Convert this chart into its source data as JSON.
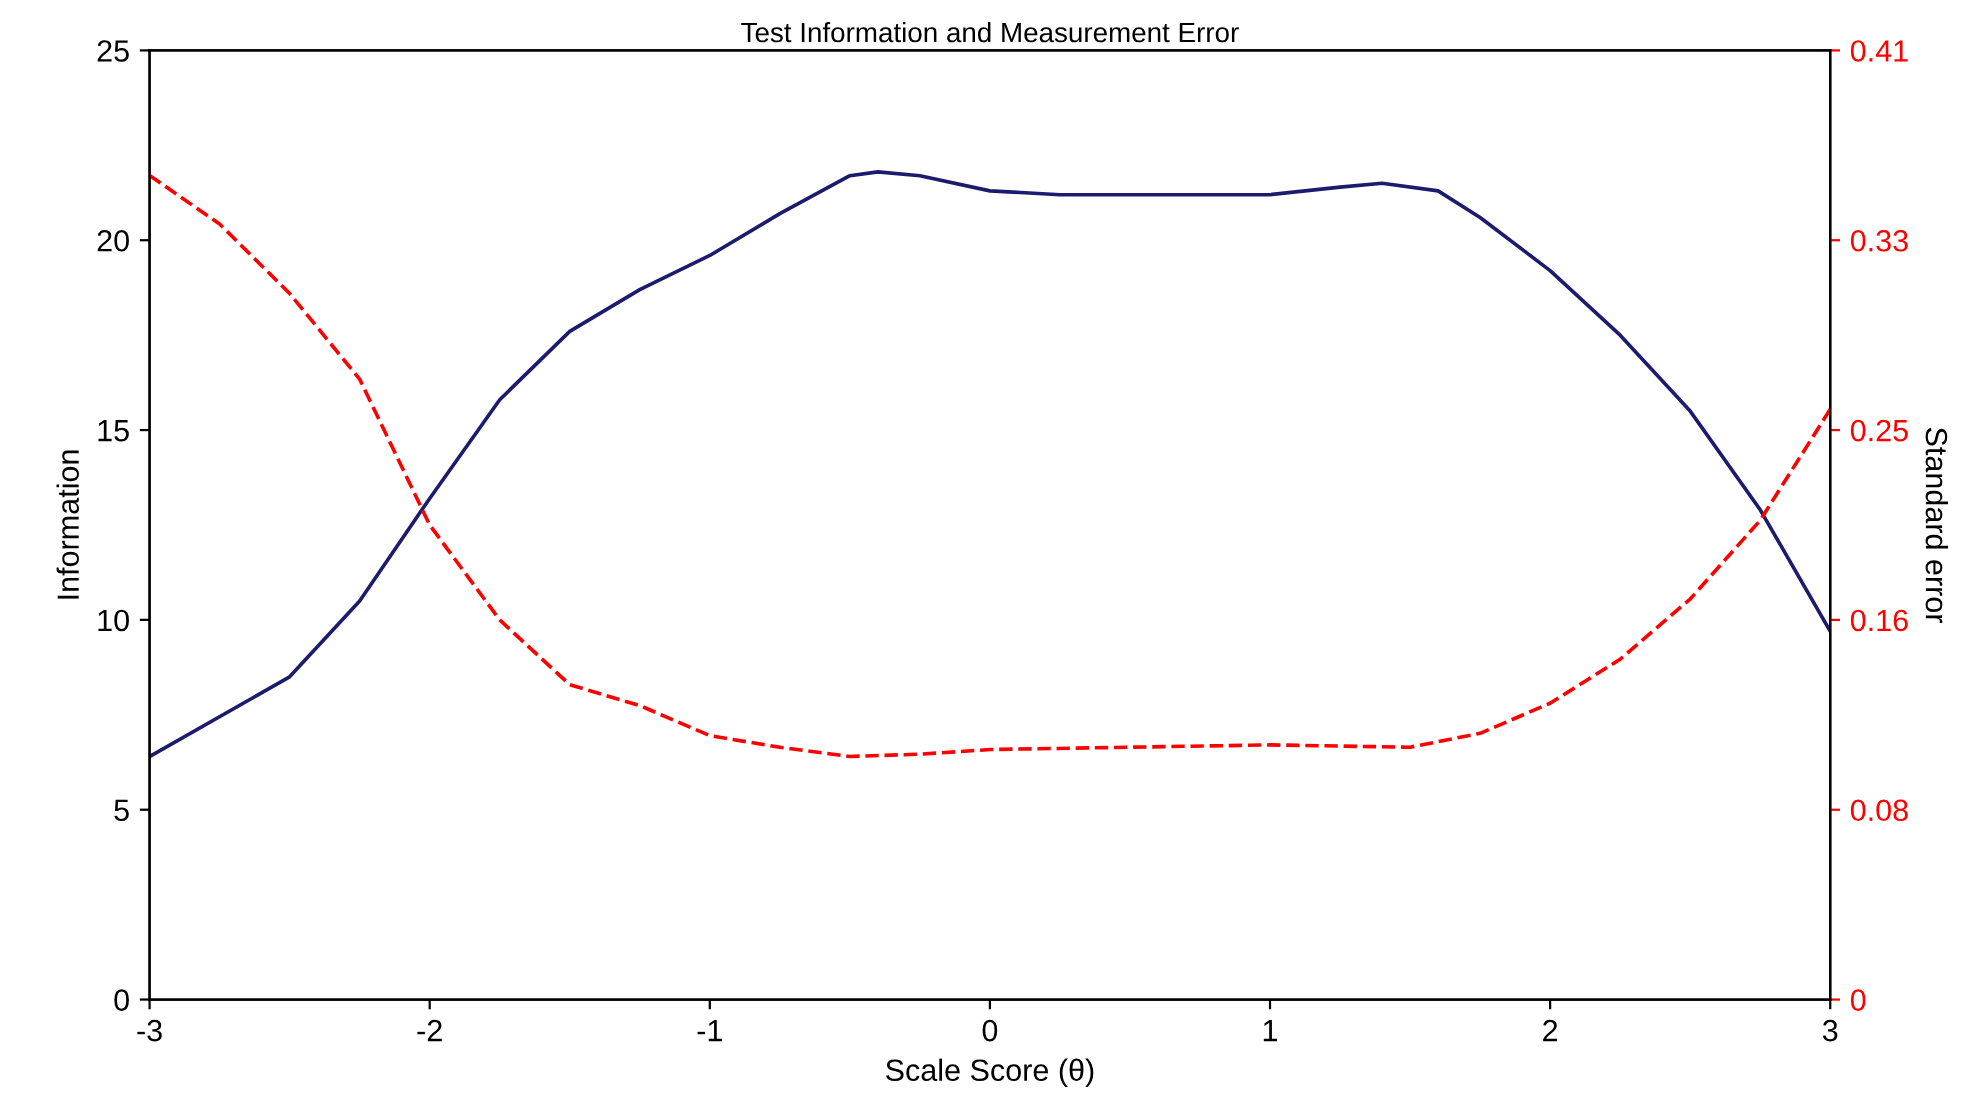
{
  "chart_data": {
    "type": "line",
    "title": "Test Information and Measurement Error",
    "xlabel": "Scale Score (θ)",
    "ylabel": "Information",
    "y2label": "Standard error",
    "xlim": [
      -3,
      3
    ],
    "xticks": [
      -3,
      -2,
      -1,
      0,
      1,
      2,
      3
    ],
    "ylim": [
      0,
      25
    ],
    "yticks": [
      0,
      5,
      10,
      15,
      20,
      25
    ],
    "y2lim": [
      0,
      0.41
    ],
    "y2ticks": [
      0,
      {
        "value": 0.082,
        "label": "0.08"
      },
      {
        "value": 0.164,
        "label": "0.16"
      },
      {
        "value": 0.246,
        "label": "0.25"
      },
      {
        "value": 0.328,
        "label": "0.33"
      },
      0.41
    ],
    "grid": false,
    "legend": false,
    "marker": "none",
    "series": [
      {
        "color": "#1c1c6e",
        "line_style": "solid",
        "x": [
          -3,
          -2.5,
          -2.25,
          -2,
          -1.75,
          -1.5,
          -1.25,
          -1,
          -0.75,
          -0.5,
          -0.4,
          -0.25,
          0,
          0.25,
          0.5,
          0.75,
          1,
          1.25,
          1.4,
          1.6,
          1.75,
          2,
          2.25,
          2.5,
          2.75,
          3
        ],
        "values": [
          6.4,
          8.5,
          10.5,
          13.2,
          15.8,
          17.6,
          18.7,
          19.6,
          20.7,
          21.7,
          21.8,
          21.7,
          21.3,
          21.2,
          21.2,
          21.2,
          21.2,
          21.4,
          21.5,
          21.3,
          20.6,
          19.2,
          17.5,
          15.5,
          12.9,
          9.7
        ]
      },
      {
        "color": "#ff0000",
        "line_style": "dashed",
        "axis": "y2",
        "x": [
          -3,
          -2.75,
          -2.5,
          -2.25,
          -2,
          -1.75,
          -1.5,
          -1.25,
          -1,
          -0.75,
          -0.5,
          -0.25,
          0,
          0.5,
          1,
          1.5,
          1.75,
          2,
          2.25,
          2.5,
          2.75,
          3
        ],
        "values": [
          0.356,
          0.335,
          0.305,
          0.268,
          0.205,
          0.164,
          0.136,
          0.127,
          0.114,
          0.109,
          0.105,
          0.106,
          0.108,
          0.109,
          0.11,
          0.109,
          0.115,
          0.128,
          0.147,
          0.173,
          0.207,
          0.255
        ]
      }
    ]
  }
}
